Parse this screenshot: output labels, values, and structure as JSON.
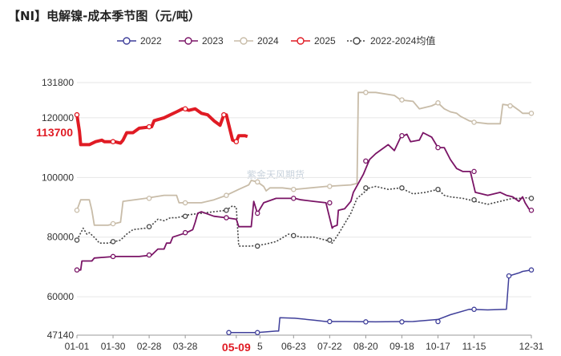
{
  "chart_data": {
    "type": "line",
    "title": "【NI】电解镍-成本季节图（元/吨）",
    "watermark": "紫金天风期货",
    "ylim": [
      47140,
      131800
    ],
    "y_ticks": [
      {
        "value": 131800,
        "label": "131800"
      },
      {
        "value": 120000,
        "label": "120000"
      },
      {
        "value": 100000,
        "label": "100000"
      },
      {
        "value": 80000,
        "label": "80000"
      },
      {
        "value": 60000,
        "label": "60000"
      },
      {
        "value": 47140,
        "label": "47140"
      }
    ],
    "x_ticks": [
      {
        "day": 0,
        "label": "01-01",
        "highlight": false
      },
      {
        "day": 29,
        "label": "01-30",
        "highlight": false
      },
      {
        "day": 58,
        "label": "02-28",
        "highlight": false
      },
      {
        "day": 87,
        "label": "03-28",
        "highlight": false
      },
      {
        "day": 128,
        "label": "05-09",
        "highlight": true
      },
      {
        "day": 147,
        "label": "5",
        "highlight": false
      },
      {
        "day": 174,
        "label": "06-23",
        "highlight": false
      },
      {
        "day": 203,
        "label": "07-22",
        "highlight": false
      },
      {
        "day": 232,
        "label": "08-20",
        "highlight": false
      },
      {
        "day": 261,
        "label": "09-18",
        "highlight": false
      },
      {
        "day": 290,
        "label": "10-17",
        "highlight": false
      },
      {
        "day": 319,
        "label": "11-15",
        "highlight": false
      },
      {
        "day": 365,
        "label": "12-31",
        "highlight": false
      }
    ],
    "latest_value": {
      "value": 113700,
      "label": "113700"
    },
    "series": [
      {
        "name": "2022",
        "color": "#3f3f9a",
        "dash": false,
        "width": 1.5,
        "points": [
          [
            120,
            48000
          ],
          [
            130,
            48000
          ],
          [
            145,
            48000
          ],
          [
            160,
            48500
          ],
          [
            162,
            48500
          ],
          [
            163,
            53000
          ],
          [
            175,
            52800
          ],
          [
            190,
            52200
          ],
          [
            200,
            51700
          ],
          [
            215,
            51700
          ],
          [
            240,
            51600
          ],
          [
            270,
            51700
          ],
          [
            290,
            52400
          ],
          [
            300,
            54000
          ],
          [
            315,
            55800
          ],
          [
            330,
            55600
          ],
          [
            345,
            55800
          ],
          [
            347,
            67000
          ],
          [
            355,
            68000
          ],
          [
            358,
            68500
          ],
          [
            365,
            69000
          ]
        ],
        "markers": [
          [
            122,
            48000
          ],
          [
            145,
            48000
          ],
          [
            203,
            51700
          ],
          [
            232,
            51600
          ],
          [
            261,
            51600
          ],
          [
            290,
            51700
          ],
          [
            319,
            55800
          ],
          [
            347,
            67000
          ],
          [
            365,
            69000
          ]
        ]
      },
      {
        "name": "2023",
        "color": "#7a1466",
        "dash": false,
        "width": 1.8,
        "points": [
          [
            0,
            69000
          ],
          [
            3,
            69000
          ],
          [
            4,
            72000
          ],
          [
            12,
            72000
          ],
          [
            14,
            73000
          ],
          [
            30,
            73500
          ],
          [
            50,
            73500
          ],
          [
            60,
            74000
          ],
          [
            65,
            76000
          ],
          [
            70,
            76000
          ],
          [
            72,
            78000
          ],
          [
            75,
            78000
          ],
          [
            77,
            80000
          ],
          [
            88,
            81500
          ],
          [
            93,
            82500
          ],
          [
            95,
            85000
          ],
          [
            97,
            88000
          ],
          [
            100,
            88500
          ],
          [
            110,
            87000
          ],
          [
            120,
            86500
          ],
          [
            128,
            86000
          ],
          [
            130,
            83500
          ],
          [
            140,
            83500
          ],
          [
            142,
            92000
          ],
          [
            145,
            88000
          ],
          [
            150,
            91500
          ],
          [
            160,
            93000
          ],
          [
            175,
            93000
          ],
          [
            180,
            92500
          ],
          [
            190,
            92000
          ],
          [
            200,
            91500
          ],
          [
            205,
            83000
          ],
          [
            206,
            83500
          ],
          [
            209,
            84000
          ],
          [
            210,
            89000
          ],
          [
            215,
            89500
          ],
          [
            220,
            92000
          ],
          [
            222,
            95000
          ],
          [
            230,
            101000
          ],
          [
            235,
            106000
          ],
          [
            240,
            108000
          ],
          [
            250,
            111000
          ],
          [
            255,
            109000
          ],
          [
            260,
            113500
          ],
          [
            265,
            114500
          ],
          [
            268,
            112000
          ],
          [
            275,
            112500
          ],
          [
            278,
            115000
          ],
          [
            285,
            113500
          ],
          [
            290,
            110000
          ],
          [
            295,
            110000
          ],
          [
            300,
            106000
          ],
          [
            305,
            103000
          ],
          [
            310,
            102000
          ],
          [
            316,
            102000
          ],
          [
            320,
            95000
          ],
          [
            325,
            94500
          ],
          [
            330,
            94000
          ],
          [
            340,
            95000
          ],
          [
            345,
            94000
          ],
          [
            350,
            93500
          ],
          [
            355,
            92000
          ],
          [
            358,
            93500
          ],
          [
            360,
            91500
          ],
          [
            363,
            89500
          ],
          [
            365,
            89000
          ]
        ],
        "markers": [
          [
            0,
            69000
          ],
          [
            29,
            73500
          ],
          [
            58,
            74000
          ],
          [
            87,
            81500
          ],
          [
            120,
            86500
          ],
          [
            145,
            88000
          ],
          [
            174,
            93000
          ],
          [
            203,
            91500
          ],
          [
            232,
            105500
          ],
          [
            261,
            114000
          ],
          [
            290,
            110000
          ],
          [
            319,
            102000
          ],
          [
            365,
            89000
          ]
        ]
      },
      {
        "name": "2024",
        "color": "#c8bca8",
        "dash": false,
        "width": 1.8,
        "points": [
          [
            0,
            89000
          ],
          [
            3,
            92500
          ],
          [
            10,
            92500
          ],
          [
            12,
            89000
          ],
          [
            14,
            84000
          ],
          [
            25,
            84000
          ],
          [
            35,
            85000
          ],
          [
            37,
            92000
          ],
          [
            55,
            93000
          ],
          [
            70,
            94000
          ],
          [
            80,
            94000
          ],
          [
            82,
            91500
          ],
          [
            100,
            91500
          ],
          [
            110,
            92500
          ],
          [
            120,
            94000
          ],
          [
            130,
            96000
          ],
          [
            138,
            97500
          ],
          [
            140,
            99000
          ],
          [
            145,
            98500
          ],
          [
            150,
            97000
          ],
          [
            152,
            95500
          ],
          [
            155,
            96500
          ],
          [
            165,
            96500
          ],
          [
            175,
            96000
          ],
          [
            200,
            97000
          ],
          [
            220,
            97500
          ],
          [
            225,
            98000
          ],
          [
            226,
            128500
          ],
          [
            240,
            128500
          ],
          [
            255,
            127500
          ],
          [
            260,
            126000
          ],
          [
            270,
            125500
          ],
          [
            275,
            123000
          ],
          [
            280,
            123500
          ],
          [
            285,
            124000
          ],
          [
            290,
            125000
          ],
          [
            295,
            123000
          ],
          [
            300,
            122000
          ],
          [
            305,
            121500
          ],
          [
            308,
            120500
          ],
          [
            315,
            119000
          ],
          [
            320,
            118500
          ],
          [
            330,
            118000
          ],
          [
            340,
            118000
          ],
          [
            342,
            124500
          ],
          [
            350,
            124000
          ],
          [
            355,
            122500
          ],
          [
            358,
            121500
          ],
          [
            365,
            121500
          ]
        ],
        "markers": [
          [
            0,
            89000
          ],
          [
            29,
            84500
          ],
          [
            58,
            93000
          ],
          [
            87,
            91500
          ],
          [
            120,
            94000
          ],
          [
            145,
            98500
          ],
          [
            174,
            96000
          ],
          [
            203,
            97000
          ],
          [
            232,
            128500
          ],
          [
            261,
            126000
          ],
          [
            290,
            125000
          ],
          [
            319,
            118500
          ],
          [
            348,
            124000
          ],
          [
            365,
            121500
          ]
        ]
      },
      {
        "name": "2025",
        "color": "#e01b24",
        "dash": false,
        "width": 4,
        "points": [
          [
            0,
            121000
          ],
          [
            2,
            115500
          ],
          [
            3,
            111000
          ],
          [
            10,
            111000
          ],
          [
            15,
            112000
          ],
          [
            20,
            112500
          ],
          [
            22,
            112000
          ],
          [
            30,
            112000
          ],
          [
            35,
            111500
          ],
          [
            37,
            112500
          ],
          [
            40,
            115000
          ],
          [
            45,
            115000
          ],
          [
            50,
            116500
          ],
          [
            60,
            117000
          ],
          [
            62,
            119000
          ],
          [
            70,
            120000
          ],
          [
            75,
            121000
          ],
          [
            80,
            122000
          ],
          [
            85,
            123000
          ],
          [
            90,
            122500
          ],
          [
            95,
            123000
          ],
          [
            100,
            121500
          ],
          [
            105,
            121000
          ],
          [
            110,
            119000
          ],
          [
            115,
            117500
          ],
          [
            118,
            121000
          ],
          [
            120,
            121000
          ],
          [
            125,
            112500
          ],
          [
            128,
            112000
          ],
          [
            130,
            114000
          ],
          [
            135,
            114000
          ],
          [
            137,
            113700
          ]
        ],
        "markers": [
          [
            0,
            121000
          ],
          [
            29,
            112000
          ],
          [
            58,
            117000
          ],
          [
            87,
            123000
          ],
          [
            118,
            121000
          ],
          [
            128,
            112000
          ]
        ]
      },
      {
        "name": "2022-2024均值",
        "color": "#444444",
        "dash": true,
        "width": 1.6,
        "points": [
          [
            0,
            79000
          ],
          [
            5,
            83000
          ],
          [
            8,
            81000
          ],
          [
            10,
            81500
          ],
          [
            15,
            79500
          ],
          [
            18,
            78000
          ],
          [
            25,
            78000
          ],
          [
            35,
            79000
          ],
          [
            40,
            81000
          ],
          [
            45,
            82500
          ],
          [
            55,
            83000
          ],
          [
            60,
            84000
          ],
          [
            65,
            86000
          ],
          [
            70,
            85500
          ],
          [
            75,
            86500
          ],
          [
            80,
            86500
          ],
          [
            85,
            87000
          ],
          [
            90,
            87500
          ],
          [
            100,
            88000
          ],
          [
            110,
            88500
          ],
          [
            120,
            89000
          ],
          [
            125,
            90500
          ],
          [
            128,
            90000
          ],
          [
            130,
            77000
          ],
          [
            140,
            77000
          ],
          [
            150,
            77500
          ],
          [
            160,
            78500
          ],
          [
            170,
            81000
          ],
          [
            180,
            80000
          ],
          [
            190,
            80000
          ],
          [
            200,
            79000
          ],
          [
            205,
            78000
          ],
          [
            210,
            81000
          ],
          [
            220,
            88000
          ],
          [
            225,
            93000
          ],
          [
            235,
            96500
          ],
          [
            240,
            97000
          ],
          [
            250,
            96000
          ],
          [
            260,
            96500
          ],
          [
            265,
            95500
          ],
          [
            270,
            94500
          ],
          [
            280,
            95000
          ],
          [
            290,
            96000
          ],
          [
            295,
            94000
          ],
          [
            300,
            93500
          ],
          [
            310,
            93000
          ],
          [
            315,
            92500
          ],
          [
            320,
            92000
          ],
          [
            330,
            91000
          ],
          [
            340,
            92000
          ],
          [
            345,
            92500
          ],
          [
            350,
            93000
          ],
          [
            355,
            93000
          ],
          [
            360,
            93200
          ],
          [
            365,
            93000
          ]
        ],
        "markers": [
          [
            0,
            79000
          ],
          [
            29,
            78500
          ],
          [
            58,
            83500
          ],
          [
            87,
            87000
          ],
          [
            120,
            89000
          ],
          [
            145,
            77000
          ],
          [
            174,
            80500
          ],
          [
            203,
            79000
          ],
          [
            232,
            96500
          ],
          [
            261,
            96500
          ],
          [
            290,
            96000
          ],
          [
            319,
            92500
          ],
          [
            365,
            93000
          ]
        ]
      }
    ]
  }
}
